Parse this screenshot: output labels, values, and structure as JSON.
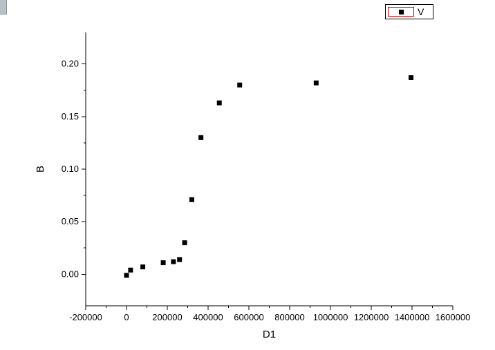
{
  "chart_data": {
    "type": "scatter",
    "title": "",
    "xlabel": "D1",
    "ylabel": "B",
    "xlim": [
      -200000,
      1600000
    ],
    "ylim": [
      -0.03,
      0.23
    ],
    "grid": false,
    "legend_position": "top-right",
    "x_ticks": [
      -200000,
      0,
      200000,
      400000,
      600000,
      800000,
      1000000,
      1200000,
      1400000,
      1600000
    ],
    "x_tick_labels": [
      "-200000",
      "0",
      "200000",
      "400000",
      "600000",
      "800000",
      "1000000",
      "1200000",
      "1400000",
      "1600000"
    ],
    "y_ticks": [
      0.0,
      0.05,
      0.1,
      0.15,
      0.2
    ],
    "y_tick_labels": [
      "0.00",
      "0.05",
      "0.10",
      "0.15",
      "0.20"
    ],
    "series": [
      {
        "name": "V",
        "marker": "square",
        "color": "#000000",
        "points": [
          [
            0,
            -0.001
          ],
          [
            20000,
            0.004
          ],
          [
            80000,
            0.007
          ],
          [
            180000,
            0.011
          ],
          [
            230000,
            0.012
          ],
          [
            260000,
            0.014
          ],
          [
            285000,
            0.03
          ],
          [
            320000,
            0.071
          ],
          [
            365000,
            0.13
          ],
          [
            455000,
            0.163
          ],
          [
            555000,
            0.18
          ],
          [
            930000,
            0.182
          ],
          [
            1395000,
            0.187
          ]
        ]
      }
    ]
  }
}
